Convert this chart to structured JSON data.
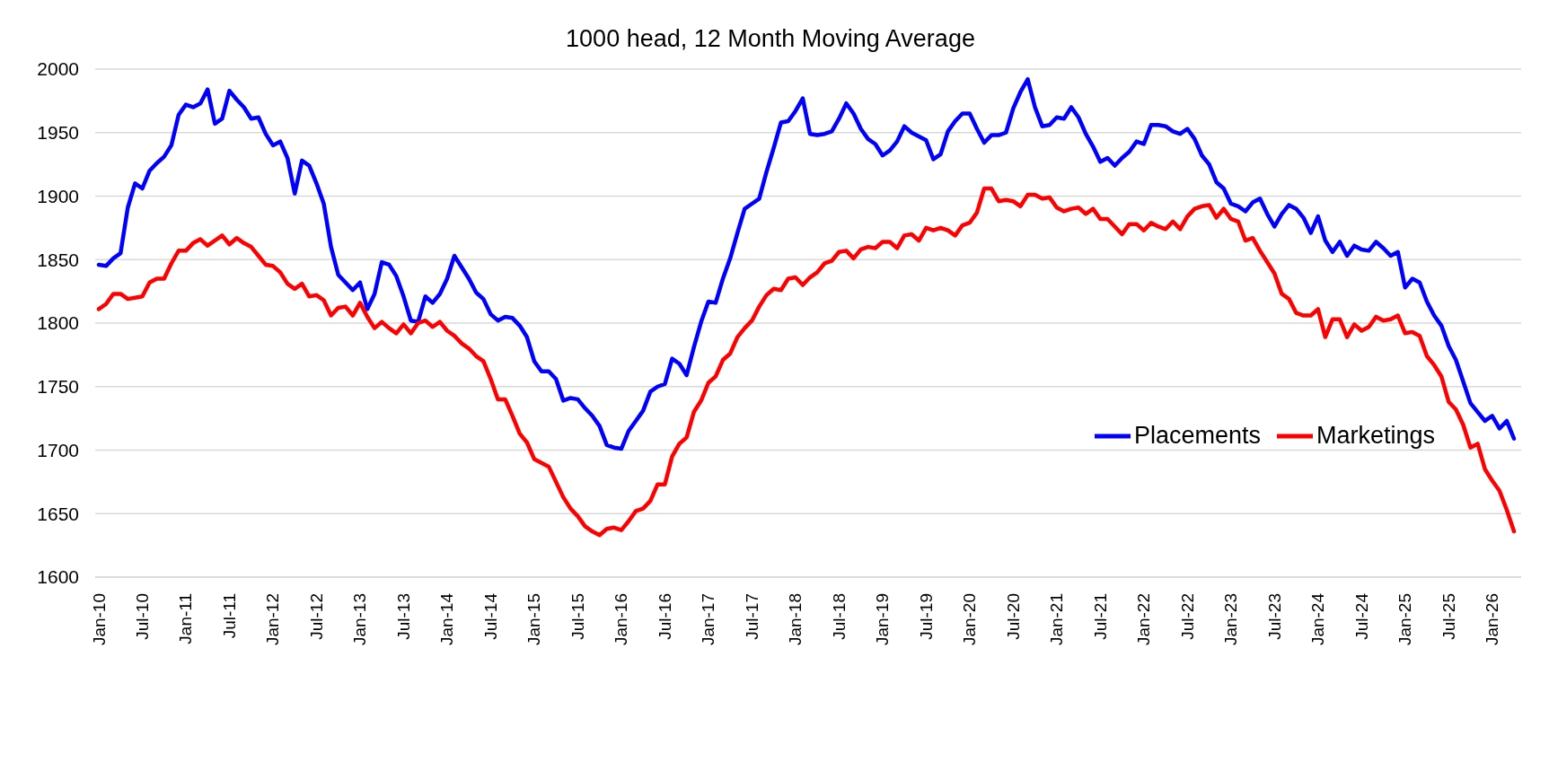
{
  "chart_data": {
    "type": "line",
    "title": "1000 head, 12 Month Moving Average",
    "categories": [
      "Jan-10",
      null,
      null,
      null,
      null,
      null,
      "Jul-10",
      null,
      null,
      null,
      null,
      null,
      "Jan-11",
      null,
      null,
      null,
      null,
      null,
      "Jul-11",
      null,
      null,
      null,
      null,
      null,
      "Jan-12",
      null,
      null,
      null,
      null,
      null,
      "Jul-12",
      null,
      null,
      null,
      null,
      null,
      "Jan-13",
      null,
      null,
      null,
      null,
      null,
      "Jul-13",
      null,
      null,
      null,
      null,
      null,
      "Jan-14",
      null,
      null,
      null,
      null,
      null,
      "Jul-14",
      null,
      null,
      null,
      null,
      null,
      "Jan-15",
      null,
      null,
      null,
      null,
      null,
      "Jul-15",
      null,
      null,
      null,
      null,
      null,
      "Jan-16",
      null,
      null,
      null,
      null,
      null,
      "Jul-16",
      null,
      null,
      null,
      null,
      null,
      "Jan-17",
      null,
      null,
      null,
      null,
      null,
      "Jul-17",
      null,
      null,
      null,
      null,
      null,
      "Jan-18",
      null,
      null,
      null,
      null,
      null,
      "Jul-18",
      null,
      null,
      null,
      null,
      null,
      "Jan-19",
      null,
      null,
      null,
      null,
      null,
      "Jul-19",
      null,
      null,
      null,
      null,
      null,
      "Jan-20",
      null,
      null,
      null,
      null,
      null,
      "Jul-20",
      null,
      null,
      null,
      null,
      null,
      "Jan-21",
      null,
      null,
      null,
      null,
      null,
      "Jul-21",
      null,
      null,
      null,
      null,
      null,
      "Jan-22",
      null,
      null,
      null,
      null,
      null,
      "Jul-22",
      null,
      null,
      null,
      null,
      null,
      "Jan-23",
      null,
      null,
      null,
      null,
      null,
      "Jul-23",
      null,
      null,
      null,
      null,
      null,
      "Jan-24",
      null,
      null,
      null,
      null,
      null,
      "Jul-24",
      null,
      null,
      null,
      null,
      null,
      "Jan-25",
      null,
      null,
      null,
      null,
      null,
      "Jul-25",
      null,
      null,
      null,
      null,
      null,
      "Jan-26",
      null,
      null,
      null
    ],
    "series": [
      {
        "name": "Placements",
        "color": "#0000ff",
        "values": [
          1846,
          1845,
          1851,
          1855,
          1891,
          1910,
          1906,
          1920,
          1926,
          1931,
          1940,
          1964,
          1972,
          1970,
          1973,
          1984,
          1957,
          1961,
          1983,
          1976,
          1970,
          1961,
          1962,
          1949,
          1940,
          1943,
          1930,
          1902,
          1928,
          1924,
          1910,
          1894,
          1860,
          1838,
          1832,
          1826,
          1832,
          1811,
          1823,
          1848,
          1846,
          1837,
          1821,
          1802,
          1801,
          1821,
          1816,
          1823,
          1835,
          1853,
          1844,
          1835,
          1824,
          1819,
          1807,
          1802,
          1805,
          1804,
          1798,
          1789,
          1770,
          1762,
          1762,
          1756,
          1739,
          1741,
          1740,
          1733,
          1727,
          1719,
          1704,
          1702,
          1701,
          1715,
          1723,
          1731,
          1746,
          1750,
          1752,
          1772,
          1768,
          1759,
          1781,
          1801,
          1817,
          1816,
          1835,
          1851,
          1871,
          1890,
          1894,
          1898,
          1919,
          1938,
          1958,
          1959,
          1967,
          1977,
          1949,
          1948,
          1949,
          1951,
          1961,
          1973,
          1965,
          1953,
          1945,
          1941,
          1932,
          1936,
          1943,
          1955,
          1950,
          1947,
          1944,
          1929,
          1933,
          1951,
          1959,
          1965,
          1965,
          1953,
          1942,
          1948,
          1948,
          1950,
          1969,
          1982,
          1992,
          1970,
          1955,
          1956,
          1962,
          1961,
          1970,
          1962,
          1949,
          1939,
          1927,
          1930,
          1924,
          1930,
          1935,
          1943,
          1941,
          1956,
          1956,
          1955,
          1951,
          1949,
          1953,
          1945,
          1932,
          1925,
          1911,
          1906,
          1894,
          1892,
          1888,
          1895,
          1898,
          1886,
          1876,
          1886,
          1893,
          1890,
          1883,
          1871,
          1884,
          1865,
          1856,
          1864,
          1853,
          1861,
          1858,
          1857,
          1864,
          1859,
          1853,
          1856,
          1828,
          1835,
          1832,
          1817,
          1806,
          1798,
          1782,
          1771,
          1754,
          1737,
          1730,
          1723,
          1727,
          1717,
          1723,
          1709
        ]
      },
      {
        "name": "Marketings",
        "color": "#ff0000",
        "values": [
          1811,
          1815,
          1823,
          1823,
          1819,
          1820,
          1821,
          1832,
          1835,
          1835,
          1847,
          1857,
          1857,
          1863,
          1866,
          1861,
          1865,
          1869,
          1862,
          1867,
          1863,
          1860,
          1853,
          1846,
          1845,
          1840,
          1831,
          1827,
          1831,
          1821,
          1822,
          1818,
          1806,
          1812,
          1813,
          1806,
          1816,
          1805,
          1796,
          1801,
          1796,
          1792,
          1799,
          1792,
          1800,
          1802,
          1797,
          1801,
          1794,
          1790,
          1784,
          1780,
          1774,
          1770,
          1756,
          1740,
          1740,
          1727,
          1713,
          1706,
          1693,
          1690,
          1687,
          1675,
          1663,
          1654,
          1648,
          1640,
          1636,
          1633,
          1638,
          1639,
          1637,
          1644,
          1652,
          1654,
          1660,
          1673,
          1673,
          1695,
          1705,
          1710,
          1730,
          1739,
          1753,
          1758,
          1771,
          1776,
          1789,
          1796,
          1802,
          1813,
          1822,
          1827,
          1826,
          1835,
          1836,
          1830,
          1836,
          1840,
          1847,
          1849,
          1856,
          1857,
          1851,
          1858,
          1860,
          1859,
          1864,
          1864,
          1859,
          1869,
          1870,
          1865,
          1875,
          1873,
          1875,
          1873,
          1869,
          1877,
          1879,
          1887,
          1906,
          1906,
          1896,
          1897,
          1896,
          1892,
          1901,
          1901,
          1898,
          1899,
          1891,
          1888,
          1890,
          1891,
          1886,
          1890,
          1882,
          1882,
          1876,
          1870,
          1878,
          1878,
          1873,
          1879,
          1876,
          1874,
          1880,
          1874,
          1884,
          1890,
          1892,
          1893,
          1883,
          1890,
          1882,
          1880,
          1865,
          1867,
          1857,
          1848,
          1839,
          1823,
          1819,
          1808,
          1806,
          1806,
          1811,
          1789,
          1803,
          1803,
          1789,
          1799,
          1794,
          1797,
          1805,
          1802,
          1803,
          1806,
          1792,
          1793,
          1790,
          1774,
          1767,
          1758,
          1738,
          1732,
          1720,
          1702,
          1705,
          1685,
          1676,
          1668,
          1653,
          1636
        ]
      }
    ],
    "ylim": [
      1600,
      2000
    ],
    "yticks": [
      1600,
      1650,
      1700,
      1750,
      1800,
      1850,
      1900,
      1950,
      2000
    ],
    "grid": "y",
    "legend": "right",
    "marker": "none"
  }
}
